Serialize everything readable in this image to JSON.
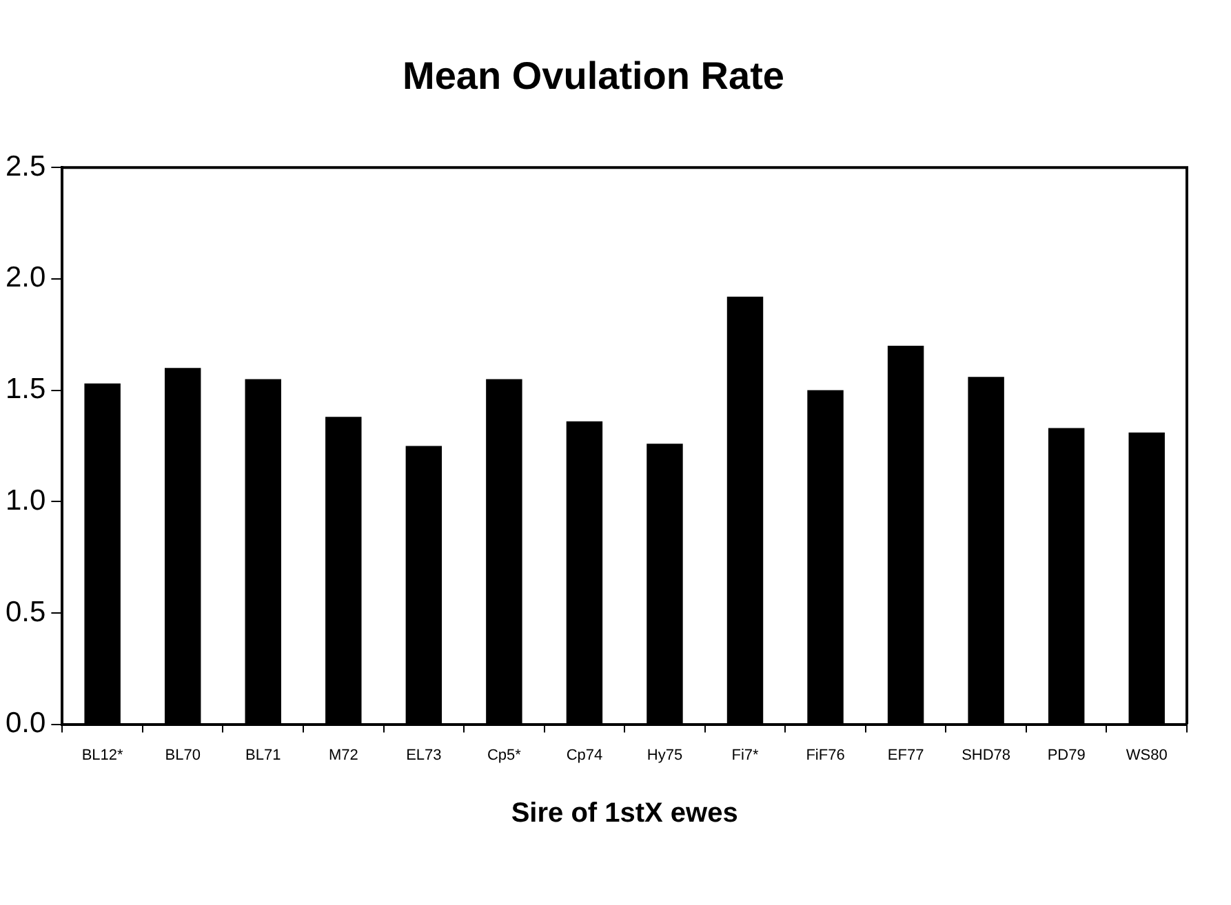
{
  "chart_data": {
    "type": "bar",
    "title": "Mean Ovulation Rate",
    "xlabel": "Sire of 1stX ewes",
    "categories": [
      "BL12*",
      "BL70",
      "BL71",
      "M72",
      "EL73",
      "Cp5*",
      "Cp74",
      "Hy75",
      "Fi7*",
      "FiF76",
      "EF77",
      "SHD78",
      "PD79",
      "WS80"
    ],
    "values": [
      1.53,
      1.6,
      1.55,
      1.38,
      1.25,
      1.55,
      1.36,
      1.26,
      1.92,
      1.5,
      1.7,
      1.56,
      1.33,
      1.31
    ],
    "color": "#000000",
    "ylim": [
      0,
      2.5
    ],
    "yticks": [
      {
        "value": 0,
        "label": "0.0"
      },
      {
        "value": 0.5,
        "label": "0.5"
      },
      {
        "value": 1,
        "label": "1.0"
      },
      {
        "value": 1.5,
        "label": "1.5"
      },
      {
        "value": 2,
        "label": "2.0"
      },
      {
        "value": 2.5,
        "label": "2.5"
      }
    ],
    "grid": false,
    "legend": false
  }
}
